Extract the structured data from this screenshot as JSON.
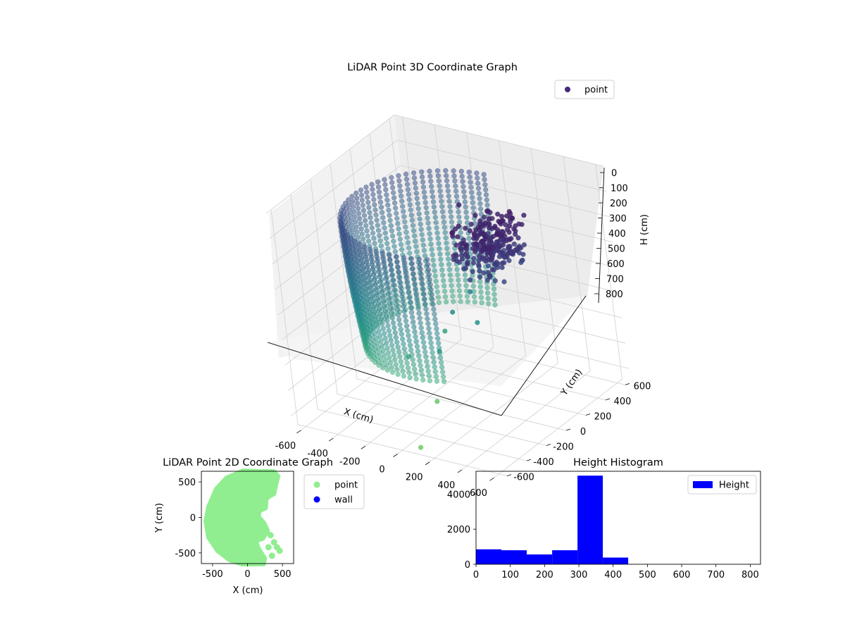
{
  "figure": {
    "background": "#ffffff"
  },
  "chart_data": [
    {
      "type": "scatter",
      "projection": "3d",
      "title": "LiDAR Point 3D Coordinate Graph",
      "xlabel": "X (cm)",
      "ylabel": "Y (cm)",
      "zlabel": "H (cm)",
      "xlim": [
        -650,
        650
      ],
      "ylim": [
        -650,
        650
      ],
      "zlim": [
        0,
        850
      ],
      "z_inverted": true,
      "x_ticks": [
        -600,
        -400,
        -200,
        0,
        200,
        400,
        600
      ],
      "y_ticks": [
        -600,
        -400,
        -200,
        0,
        200,
        400,
        600
      ],
      "z_ticks": [
        0,
        100,
        200,
        300,
        400,
        500,
        600,
        700,
        800
      ],
      "grid": true,
      "legend": {
        "position": "top-right",
        "entries": [
          {
            "label": "point",
            "color": "#482878"
          }
        ]
      },
      "colormap": "viridis",
      "series": [
        {
          "name": "point",
          "description": "Dome-shaped shell of points (radius ~520 cm) around the origin, heights 100-600 cm; a dense dark cluster near X 50-300 cm, Y 0-400 cm at height ~200-300 cm; two stray points near the floor.",
          "shell": {
            "radius": 520,
            "h_top": 100,
            "h_bottom": 600
          },
          "points": [
            {
              "x": -100,
              "y": 350,
              "h": 180
            },
            {
              "x": 80,
              "y": 250,
              "h": 220
            },
            {
              "x": 150,
              "y": 150,
              "h": 260
            },
            {
              "x": 220,
              "y": 260,
              "h": 240
            },
            {
              "x": 260,
              "y": 80,
              "h": 300
            },
            {
              "x": 180,
              "y": -50,
              "h": 360
            },
            {
              "x": 120,
              "y": -150,
              "h": 420
            },
            {
              "x": 250,
              "y": -120,
              "h": 450
            },
            {
              "x": -20,
              "y": -40,
              "h": 550
            },
            {
              "x": 60,
              "y": -230,
              "h": 560
            },
            {
              "x": -120,
              "y": -260,
              "h": 600
            },
            {
              "x": 330,
              "y": 60,
              "h": 330
            },
            {
              "x": -50,
              "y": -150,
              "h": 800
            },
            {
              "x": 120,
              "y": -600,
              "h": 820
            }
          ]
        }
      ]
    },
    {
      "type": "scatter",
      "title": "LiDAR Point 2D Coordinate Graph",
      "xlabel": "X (cm)",
      "ylabel": "Y (cm)",
      "xlim": [
        -660,
        660
      ],
      "ylim": [
        -650,
        650
      ],
      "x_ticks": [
        -500,
        0,
        500
      ],
      "y_ticks": [
        -500,
        0,
        500
      ],
      "legend": {
        "position": "outside-right",
        "entries": [
          {
            "label": "point",
            "color": "#90ee90"
          },
          {
            "label": "wall",
            "color": "#0000ff"
          }
        ]
      },
      "series": [
        {
          "name": "point",
          "color": "#90ee90",
          "outline": [
            [
              380,
              650
            ],
            [
              180,
              650
            ],
            [
              -60,
              660
            ],
            [
              -300,
              560
            ],
            [
              -450,
              400
            ],
            [
              -560,
              150
            ],
            [
              -600,
              -50
            ],
            [
              -560,
              -280
            ],
            [
              -430,
              -470
            ],
            [
              -260,
              -600
            ],
            [
              -80,
              -660
            ],
            [
              230,
              -660
            ],
            [
              250,
              -580
            ],
            [
              160,
              -440
            ],
            [
              120,
              -330
            ],
            [
              220,
              -300
            ],
            [
              290,
              -190
            ],
            [
              240,
              -80
            ],
            [
              160,
              10
            ],
            [
              170,
              90
            ],
            [
              260,
              130
            ],
            [
              270,
              260
            ],
            [
              320,
              300
            ],
            [
              380,
              330
            ],
            [
              410,
              470
            ],
            [
              440,
              580
            ]
          ],
          "points": [
            [
              380,
              -350
            ],
            [
              420,
              -420
            ],
            [
              460,
              -470
            ],
            [
              350,
              -540
            ],
            [
              300,
              -420
            ],
            [
              200,
              200
            ],
            [
              350,
              380
            ],
            [
              330,
              -250
            ]
          ]
        },
        {
          "name": "wall",
          "color": "#0000ff",
          "points": []
        }
      ]
    },
    {
      "type": "bar",
      "histogram": true,
      "title": "Height Histogram",
      "xlabel": "",
      "ylabel": "",
      "xlim": [
        0,
        830
      ],
      "ylim": [
        0,
        5300
      ],
      "x_ticks": [
        0,
        100,
        200,
        300,
        400,
        500,
        600,
        700,
        800
      ],
      "y_ticks": [
        0,
        2000,
        4000
      ],
      "legend": {
        "position": "top-right",
        "entries": [
          {
            "label": "Height",
            "color": "#0000ff"
          }
        ]
      },
      "series": [
        {
          "name": "Height",
          "color": "#0000ff",
          "bin_edges": [
            0,
            74,
            148,
            222,
            296,
            370,
            444,
            518,
            592,
            666,
            740,
            814
          ],
          "values": [
            850,
            800,
            560,
            800,
            5050,
            380,
            0,
            0,
            0,
            0,
            2
          ]
        }
      ]
    }
  ]
}
